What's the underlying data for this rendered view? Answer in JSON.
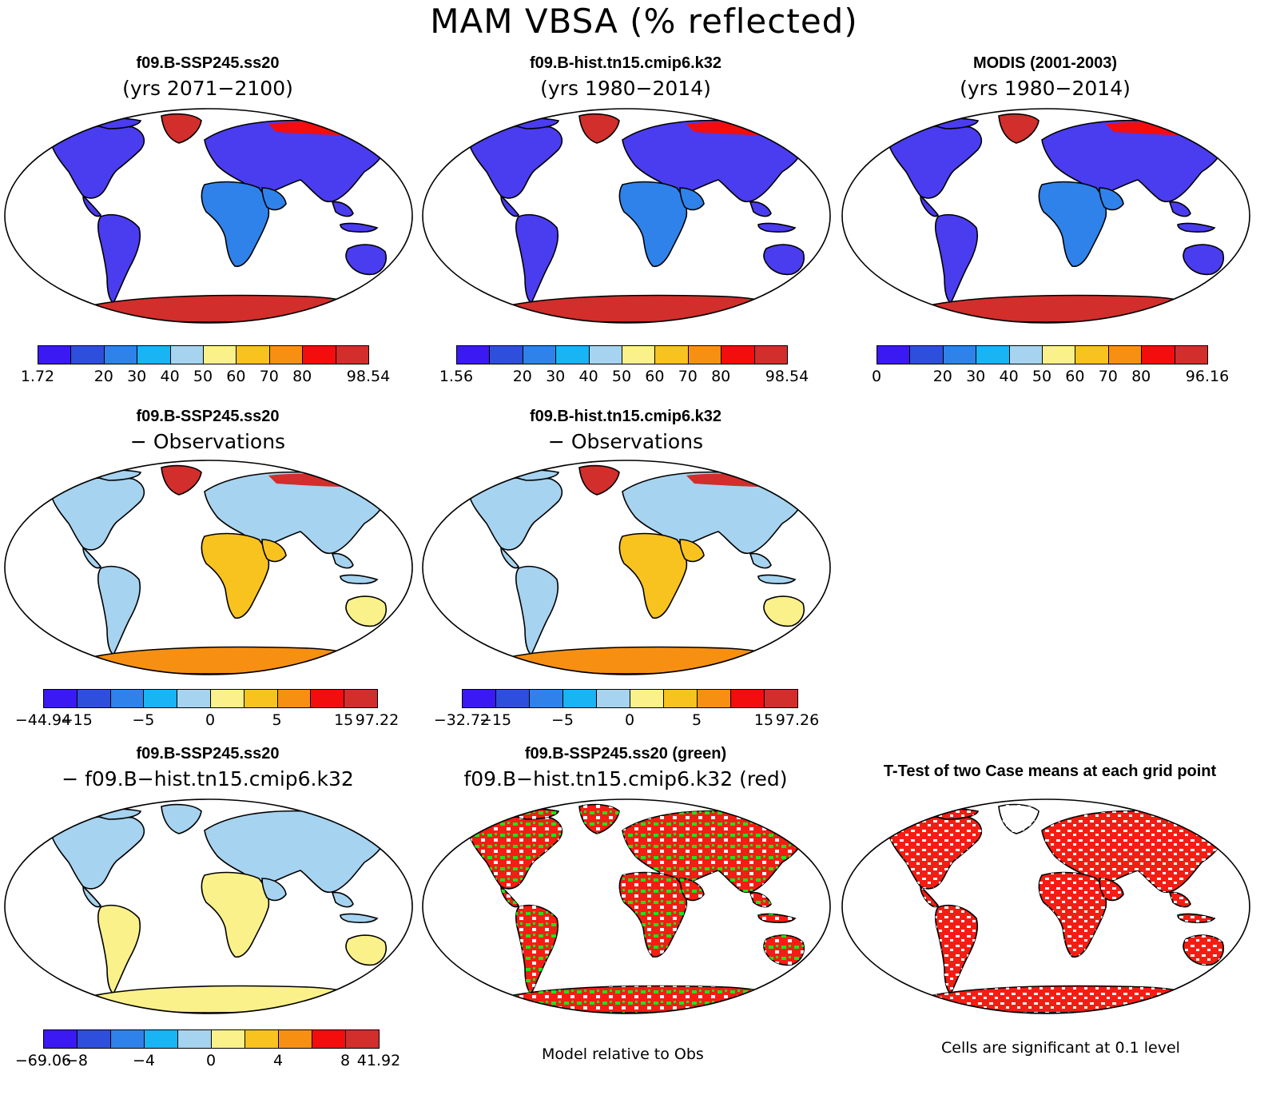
{
  "title": "MAM VBSA (% reflected)",
  "colors": {
    "scale": [
      "#3a19f2",
      "#2e4fdc",
      "#2f82ea",
      "#18b4f3",
      "#a6d3ef",
      "#fbf18a",
      "#f8c21f",
      "#f79012",
      "#f30d0c",
      "#d12e2c"
    ],
    "land_absolute": "#4a3cef",
    "land_diff": "#b7d7ef",
    "significant_red": "#f31d14",
    "significant_green": "#19e619"
  },
  "panels": [
    {
      "id": "case1",
      "title": "f09.B-SSP245.ss20",
      "subtitle": "(yrs 2071−2100)",
      "style": "absolute",
      "colorbar": {
        "labels": [
          "1.72",
          "",
          "20",
          "30",
          "40",
          "50",
          "60",
          "70",
          "80",
          "",
          "98.54"
        ]
      }
    },
    {
      "id": "case2",
      "title": "f09.B-hist.tn15.cmip6.k32",
      "subtitle": "(yrs 1980−2014)",
      "style": "absolute",
      "colorbar": {
        "labels": [
          "1.56",
          "",
          "20",
          "30",
          "40",
          "50",
          "60",
          "70",
          "80",
          "",
          "98.54"
        ]
      }
    },
    {
      "id": "obs",
      "title": "MODIS (2001-2003)",
      "subtitle": "(yrs 1980−2014)",
      "style": "absolute",
      "colorbar": {
        "labels": [
          "0",
          "",
          "20",
          "30",
          "40",
          "50",
          "60",
          "70",
          "80",
          "",
          "96.16"
        ]
      }
    },
    {
      "id": "case1-obs",
      "title": "f09.B-SSP245.ss20",
      "subtitle": "− Observations",
      "style": "diff",
      "colorbar": {
        "labels": [
          "−44.94",
          "−15",
          "",
          "−5",
          "",
          "0",
          "",
          "5",
          "",
          "15",
          "97.22"
        ]
      }
    },
    {
      "id": "case2-obs",
      "title": "f09.B-hist.tn15.cmip6.k32",
      "subtitle": "− Observations",
      "style": "diff",
      "colorbar": {
        "labels": [
          "−32.72",
          "−15",
          "",
          "−5",
          "",
          "0",
          "",
          "5",
          "",
          "15",
          "97.26"
        ]
      }
    },
    {
      "id": "case1-case2",
      "title": "f09.B-SSP245.ss20",
      "subtitle": "− f09.B−hist.tn15.cmip6.k32",
      "style": "diff2",
      "colorbar": {
        "labels": [
          "−69.06",
          "−8",
          "",
          "−4",
          "",
          "0",
          "",
          "4",
          "",
          "8",
          "41.92"
        ]
      }
    },
    {
      "id": "model-rel-obs",
      "title": "f09.B-SSP245.ss20 (green)",
      "subtitle": "f09.B−hist.tn15.cmip6.k32 (red)",
      "style": "redgreen",
      "footnote": "Model relative to Obs"
    },
    {
      "id": "ttest",
      "title": "T-Test of two Case means at each grid point",
      "subtitle": "",
      "style": "ttest",
      "footnote": "Cells are significant at 0.1 level"
    }
  ]
}
